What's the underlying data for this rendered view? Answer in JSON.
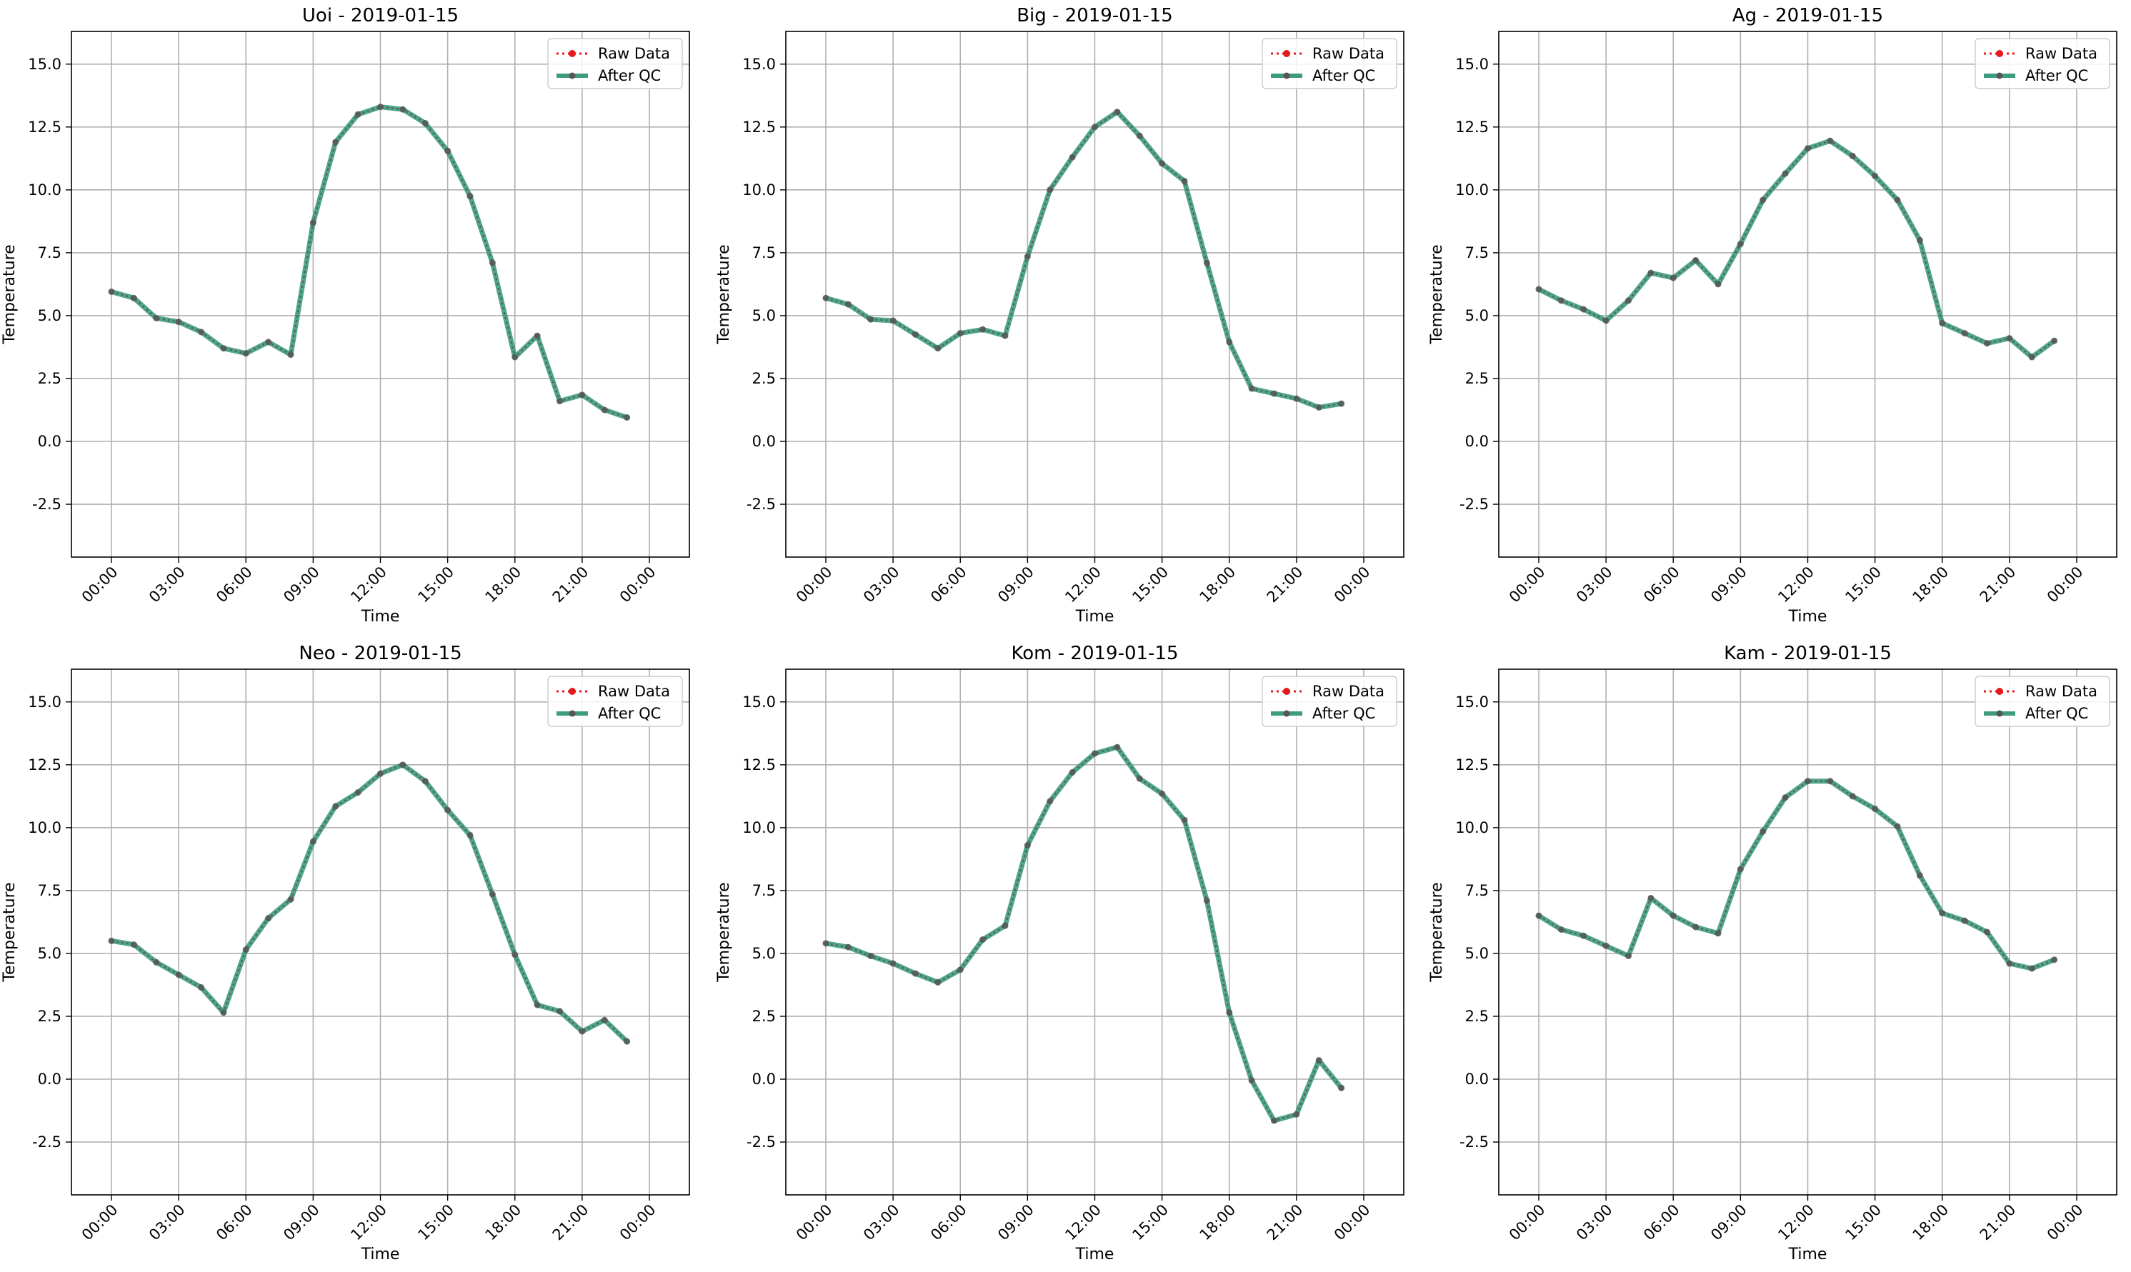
{
  "figure": {
    "background": "#ffffff"
  },
  "style": {
    "raw_color": "#e41a1c",
    "qc_color": "#2e8b6e",
    "qc_line_color": "#3d9c80",
    "marker_color": "#555555",
    "grid_color": "#b0b0b0"
  },
  "chart_data": [
    {
      "type": "line",
      "title": "Uoi - 2019-01-15",
      "xlabel": "Time",
      "ylabel": "Temperature",
      "x_ticks": [
        "00:00",
        "03:00",
        "06:00",
        "09:00",
        "12:00",
        "15:00",
        "18:00",
        "21:00",
        "00:00"
      ],
      "y_ticks": [
        "-2.5",
        "0.0",
        "2.5",
        "5.0",
        "7.5",
        "10.0",
        "12.5",
        "15.0"
      ],
      "ylim": [
        -4.6,
        16.3
      ],
      "grid": true,
      "legend": {
        "placement": "top-right",
        "entries": [
          "Raw Data",
          "After QC"
        ]
      },
      "x": [
        "00:00",
        "01:00",
        "02:00",
        "03:00",
        "04:00",
        "05:00",
        "06:00",
        "07:00",
        "08:00",
        "09:00",
        "10:00",
        "11:00",
        "12:00",
        "13:00",
        "14:00",
        "15:00",
        "16:00",
        "17:00",
        "18:00",
        "19:00",
        "20:00",
        "21:00",
        "22:00",
        "23:00"
      ],
      "series": [
        {
          "name": "Raw Data",
          "values": [
            5.95,
            5.7,
            4.9,
            4.75,
            4.35,
            3.7,
            3.5,
            3.95,
            3.45,
            8.7,
            11.9,
            13.0,
            13.3,
            13.2,
            12.65,
            11.55,
            9.75,
            7.1,
            3.35,
            4.2,
            1.6,
            1.85,
            1.25,
            0.95
          ]
        },
        {
          "name": "After QC",
          "values": [
            5.95,
            5.7,
            4.9,
            4.75,
            4.35,
            3.7,
            3.5,
            3.95,
            3.45,
            8.7,
            11.9,
            13.0,
            13.3,
            13.2,
            12.65,
            11.55,
            9.75,
            7.1,
            3.35,
            4.2,
            1.6,
            1.85,
            1.25,
            0.95
          ]
        }
      ]
    },
    {
      "type": "line",
      "title": "Big - 2019-01-15",
      "xlabel": "Time",
      "ylabel": "Temperature",
      "x_ticks": [
        "00:00",
        "03:00",
        "06:00",
        "09:00",
        "12:00",
        "15:00",
        "18:00",
        "21:00",
        "00:00"
      ],
      "y_ticks": [
        "-2.5",
        "0.0",
        "2.5",
        "5.0",
        "7.5",
        "10.0",
        "12.5",
        "15.0"
      ],
      "ylim": [
        -4.6,
        16.3
      ],
      "grid": true,
      "legend": {
        "placement": "top-right",
        "entries": [
          "Raw Data",
          "After QC"
        ]
      },
      "x": [
        "00:00",
        "01:00",
        "02:00",
        "03:00",
        "04:00",
        "05:00",
        "06:00",
        "07:00",
        "08:00",
        "09:00",
        "10:00",
        "11:00",
        "12:00",
        "13:00",
        "14:00",
        "15:00",
        "16:00",
        "17:00",
        "18:00",
        "19:00",
        "20:00",
        "21:00",
        "22:00",
        "23:00"
      ],
      "series": [
        {
          "name": "Raw Data",
          "values": [
            5.7,
            5.45,
            4.85,
            4.8,
            4.25,
            3.7,
            4.3,
            4.45,
            4.2,
            7.35,
            10.0,
            11.3,
            12.5,
            13.1,
            12.15,
            11.05,
            10.35,
            7.1,
            3.95,
            2.1,
            1.9,
            1.7,
            1.35,
            1.5
          ]
        },
        {
          "name": "After QC",
          "values": [
            5.7,
            5.45,
            4.85,
            4.8,
            4.25,
            3.7,
            4.3,
            4.45,
            4.2,
            7.35,
            10.0,
            11.3,
            12.5,
            13.1,
            12.15,
            11.05,
            10.35,
            7.1,
            3.95,
            2.1,
            1.9,
            1.7,
            1.35,
            1.5
          ]
        }
      ]
    },
    {
      "type": "line",
      "title": "Ag - 2019-01-15",
      "xlabel": "Time",
      "ylabel": "Temperature",
      "x_ticks": [
        "00:00",
        "03:00",
        "06:00",
        "09:00",
        "12:00",
        "15:00",
        "18:00",
        "21:00",
        "00:00"
      ],
      "y_ticks": [
        "-2.5",
        "0.0",
        "2.5",
        "5.0",
        "7.5",
        "10.0",
        "12.5",
        "15.0"
      ],
      "ylim": [
        -4.6,
        16.3
      ],
      "grid": true,
      "legend": {
        "placement": "top-right",
        "entries": [
          "Raw Data",
          "After QC"
        ]
      },
      "x": [
        "00:00",
        "01:00",
        "02:00",
        "03:00",
        "04:00",
        "05:00",
        "06:00",
        "07:00",
        "08:00",
        "09:00",
        "10:00",
        "11:00",
        "12:00",
        "13:00",
        "14:00",
        "15:00",
        "16:00",
        "17:00",
        "18:00",
        "19:00",
        "20:00",
        "21:00",
        "22:00",
        "23:00"
      ],
      "series": [
        {
          "name": "Raw Data",
          "values": [
            6.05,
            5.6,
            5.25,
            4.8,
            5.6,
            6.7,
            6.5,
            7.2,
            6.25,
            7.85,
            9.6,
            10.65,
            11.65,
            11.95,
            11.35,
            10.55,
            9.6,
            8.0,
            4.7,
            4.3,
            3.9,
            4.1,
            3.35,
            4.0
          ]
        },
        {
          "name": "After QC",
          "values": [
            6.05,
            5.6,
            5.25,
            4.8,
            5.6,
            6.7,
            6.5,
            7.2,
            6.25,
            7.85,
            9.6,
            10.65,
            11.65,
            11.95,
            11.35,
            10.55,
            9.6,
            8.0,
            4.7,
            4.3,
            3.9,
            4.1,
            3.35,
            4.0
          ]
        }
      ]
    },
    {
      "type": "line",
      "title": "Neo - 2019-01-15",
      "xlabel": "Time",
      "ylabel": "Temperature",
      "x_ticks": [
        "00:00",
        "03:00",
        "06:00",
        "09:00",
        "12:00",
        "15:00",
        "18:00",
        "21:00",
        "00:00"
      ],
      "y_ticks": [
        "-2.5",
        "0.0",
        "2.5",
        "5.0",
        "7.5",
        "10.0",
        "12.5",
        "15.0"
      ],
      "ylim": [
        -4.6,
        16.3
      ],
      "grid": true,
      "legend": {
        "placement": "top-right",
        "entries": [
          "Raw Data",
          "After QC"
        ]
      },
      "x": [
        "00:00",
        "01:00",
        "02:00",
        "03:00",
        "04:00",
        "05:00",
        "06:00",
        "07:00",
        "08:00",
        "09:00",
        "10:00",
        "11:00",
        "12:00",
        "13:00",
        "14:00",
        "15:00",
        "16:00",
        "17:00",
        "18:00",
        "19:00",
        "20:00",
        "21:00",
        "22:00",
        "23:00"
      ],
      "series": [
        {
          "name": "Raw Data",
          "values": [
            5.5,
            5.35,
            4.65,
            4.15,
            3.65,
            2.65,
            5.15,
            6.4,
            7.15,
            9.45,
            10.85,
            11.4,
            12.15,
            12.5,
            11.85,
            10.7,
            9.7,
            7.35,
            4.95,
            2.95,
            2.7,
            1.9,
            2.35,
            1.5
          ]
        },
        {
          "name": "After QC",
          "values": [
            5.5,
            5.35,
            4.65,
            4.15,
            3.65,
            2.65,
            5.15,
            6.4,
            7.15,
            9.45,
            10.85,
            11.4,
            12.15,
            12.5,
            11.85,
            10.7,
            9.7,
            7.35,
            4.95,
            2.95,
            2.7,
            1.9,
            2.35,
            1.5
          ]
        }
      ]
    },
    {
      "type": "line",
      "title": "Kom - 2019-01-15",
      "xlabel": "Time",
      "ylabel": "Temperature",
      "x_ticks": [
        "00:00",
        "03:00",
        "06:00",
        "09:00",
        "12:00",
        "15:00",
        "18:00",
        "21:00",
        "00:00"
      ],
      "y_ticks": [
        "-2.5",
        "0.0",
        "2.5",
        "5.0",
        "7.5",
        "10.0",
        "12.5",
        "15.0"
      ],
      "ylim": [
        -4.6,
        16.3
      ],
      "grid": true,
      "legend": {
        "placement": "top-right",
        "entries": [
          "Raw Data",
          "After QC"
        ]
      },
      "x": [
        "00:00",
        "01:00",
        "02:00",
        "03:00",
        "04:00",
        "05:00",
        "06:00",
        "07:00",
        "08:00",
        "09:00",
        "10:00",
        "11:00",
        "12:00",
        "13:00",
        "14:00",
        "15:00",
        "16:00",
        "17:00",
        "18:00",
        "19:00",
        "20:00",
        "21:00",
        "22:00",
        "23:00"
      ],
      "series": [
        {
          "name": "Raw Data",
          "values": [
            5.4,
            5.25,
            4.9,
            4.6,
            4.2,
            3.85,
            4.35,
            5.55,
            6.1,
            9.3,
            11.05,
            12.2,
            12.95,
            13.2,
            11.95,
            11.35,
            10.3,
            7.1,
            2.65,
            -0.05,
            -1.65,
            -1.4,
            0.75,
            -0.35
          ]
        },
        {
          "name": "After QC",
          "values": [
            5.4,
            5.25,
            4.9,
            4.6,
            4.2,
            3.85,
            4.35,
            5.55,
            6.1,
            9.3,
            11.05,
            12.2,
            12.95,
            13.2,
            11.95,
            11.35,
            10.3,
            7.1,
            2.65,
            -0.05,
            -1.65,
            -1.4,
            0.75,
            -0.35
          ]
        }
      ]
    },
    {
      "type": "line",
      "title": "Kam - 2019-01-15",
      "xlabel": "Time",
      "ylabel": "Temperature",
      "x_ticks": [
        "00:00",
        "03:00",
        "06:00",
        "09:00",
        "12:00",
        "15:00",
        "18:00",
        "21:00",
        "00:00"
      ],
      "y_ticks": [
        "-2.5",
        "0.0",
        "2.5",
        "5.0",
        "7.5",
        "10.0",
        "12.5",
        "15.0"
      ],
      "ylim": [
        -4.6,
        16.3
      ],
      "grid": true,
      "legend": {
        "placement": "top-right",
        "entries": [
          "Raw Data",
          "After QC"
        ]
      },
      "x": [
        "00:00",
        "01:00",
        "02:00",
        "03:00",
        "04:00",
        "05:00",
        "06:00",
        "07:00",
        "08:00",
        "09:00",
        "10:00",
        "11:00",
        "12:00",
        "13:00",
        "14:00",
        "15:00",
        "16:00",
        "17:00",
        "18:00",
        "19:00",
        "20:00",
        "21:00",
        "22:00",
        "23:00"
      ],
      "series": [
        {
          "name": "Raw Data",
          "values": [
            6.5,
            5.95,
            5.7,
            5.3,
            4.9,
            7.2,
            6.5,
            6.05,
            5.8,
            8.35,
            9.85,
            11.2,
            11.85,
            11.85,
            11.25,
            10.75,
            10.05,
            8.1,
            6.6,
            6.3,
            5.85,
            4.6,
            4.4,
            4.75
          ]
        },
        {
          "name": "After QC",
          "values": [
            6.5,
            5.95,
            5.7,
            5.3,
            4.9,
            7.2,
            6.5,
            6.05,
            5.8,
            8.35,
            9.85,
            11.2,
            11.85,
            11.85,
            11.25,
            10.75,
            10.05,
            8.1,
            6.6,
            6.3,
            5.85,
            4.6,
            4.4,
            4.75
          ]
        }
      ]
    }
  ]
}
